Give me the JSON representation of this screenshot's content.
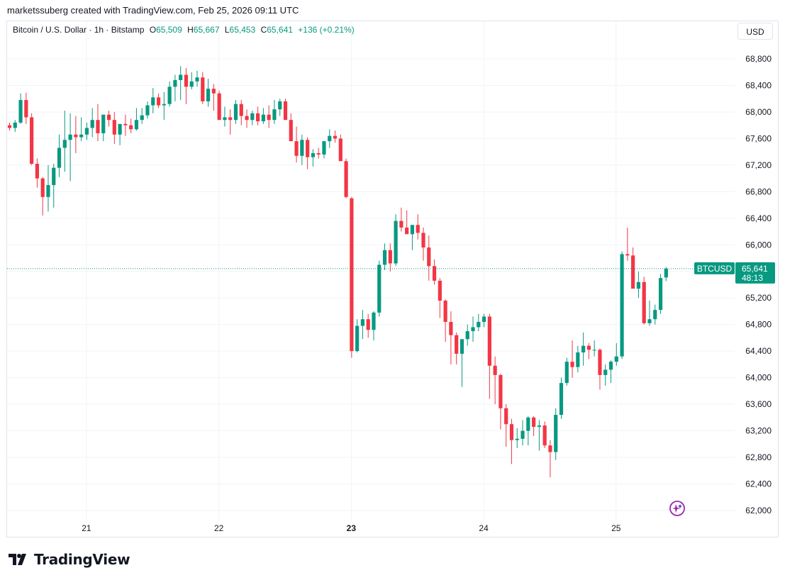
{
  "header": {
    "attribution": "marketssuberg created with TradingView.com, Feb 25, 2026 09:11 UTC"
  },
  "symbol": {
    "title": "Bitcoin / U.S. Dollar · 1h · Bitstamp",
    "open_label": "O",
    "open_value": "65,509",
    "high_label": "H",
    "high_value": "65,667",
    "low_label": "L",
    "low_value": "65,453",
    "close_label": "C",
    "close_value": "65,641",
    "change": "+136 (+0.21%)"
  },
  "toolbar": {
    "currency": "USD"
  },
  "price_label": {
    "ticker": "BTCUSD",
    "price": "65,641",
    "countdown": "48:13"
  },
  "footer": {
    "brand": "TradingView"
  },
  "colors": {
    "up": "#089981",
    "down": "#f23645",
    "grid": "#f0f3fa",
    "axis_text": "#131722",
    "last_price_line": "#089981"
  },
  "icons": {
    "assistant": "sparkle-icon",
    "logo": "tradingview-logo-icon"
  },
  "chart_data": {
    "type": "candlestick",
    "title": "Bitcoin / U.S. Dollar · 1h · Bitstamp",
    "y_ticks": [
      62000,
      62400,
      62800,
      63200,
      63600,
      64000,
      64400,
      64800,
      65200,
      65600,
      66000,
      66400,
      66800,
      67200,
      67600,
      68000,
      68400,
      68800
    ],
    "y_tick_labels": [
      "62,000",
      "62,400",
      "62,800",
      "63,200",
      "63,600",
      "64,000",
      "64,400",
      "64,800",
      "65,200",
      "65,600",
      "66,000",
      "66,400",
      "66,800",
      "67,200",
      "67,600",
      "68,000",
      "68,400",
      "68,800"
    ],
    "ylim": [
      61900,
      69600
    ],
    "x_ticks": [
      {
        "label": "21",
        "bold": false
      },
      {
        "label": "22",
        "bold": false
      },
      {
        "label": "23",
        "bold": true
      },
      {
        "label": "24",
        "bold": false
      },
      {
        "label": "25",
        "bold": false
      }
    ],
    "x_tick_index": [
      14,
      38,
      62,
      86,
      110
    ],
    "grid": true,
    "last_price": 65641,
    "candles": [
      [
        67800,
        67840,
        67720,
        67760
      ],
      [
        67760,
        67880,
        67700,
        67840
      ],
      [
        67840,
        68280,
        67820,
        68180
      ],
      [
        68180,
        68290,
        67820,
        67920
      ],
      [
        67920,
        67980,
        67200,
        67220
      ],
      [
        67220,
        67300,
        66860,
        67000
      ],
      [
        67000,
        67020,
        66440,
        66720
      ],
      [
        66720,
        67200,
        66500,
        66900
      ],
      [
        66900,
        67220,
        66560,
        67160
      ],
      [
        67160,
        67660,
        67020,
        67460
      ],
      [
        67460,
        68020,
        67100,
        67580
      ],
      [
        67580,
        67980,
        66960,
        67660
      ],
      [
        67660,
        67940,
        67380,
        67620
      ],
      [
        67620,
        67920,
        67560,
        67660
      ],
      [
        67660,
        67840,
        67580,
        67760
      ],
      [
        67760,
        68060,
        67620,
        67880
      ],
      [
        67880,
        68120,
        67560,
        67680
      ],
      [
        67680,
        67920,
        67560,
        67960
      ],
      [
        67960,
        68020,
        67780,
        67880
      ],
      [
        67880,
        68000,
        67520,
        67660
      ],
      [
        67660,
        67800,
        67500,
        67820
      ],
      [
        67820,
        67960,
        67640,
        67800
      ],
      [
        67800,
        67900,
        67680,
        67740
      ],
      [
        67740,
        68060,
        67720,
        67880
      ],
      [
        67880,
        68060,
        67820,
        67950
      ],
      [
        67950,
        68160,
        67900,
        68100
      ],
      [
        68100,
        68360,
        67980,
        68220
      ],
      [
        68220,
        68280,
        68060,
        68100
      ],
      [
        68100,
        68300,
        67880,
        68120
      ],
      [
        68120,
        68460,
        68080,
        68380
      ],
      [
        68380,
        68560,
        68160,
        68480
      ],
      [
        68480,
        68690,
        68180,
        68560
      ],
      [
        68560,
        68660,
        68120,
        68380
      ],
      [
        68380,
        68600,
        68340,
        68460
      ],
      [
        68460,
        68620,
        68380,
        68520
      ],
      [
        68520,
        68600,
        68120,
        68160
      ],
      [
        68160,
        68500,
        68080,
        68350
      ],
      [
        68350,
        68420,
        68020,
        68280
      ],
      [
        68280,
        68320,
        67900,
        67880
      ],
      [
        67880,
        68080,
        67780,
        67920
      ],
      [
        67920,
        68040,
        67660,
        67880
      ],
      [
        67880,
        68180,
        67820,
        68120
      ],
      [
        68120,
        68180,
        67800,
        67940
      ],
      [
        67940,
        68040,
        67760,
        67880
      ],
      [
        67880,
        68020,
        67800,
        67980
      ],
      [
        67980,
        68080,
        67800,
        67860
      ],
      [
        67860,
        68060,
        67820,
        67960
      ],
      [
        67960,
        68100,
        67760,
        67880
      ],
      [
        67880,
        68180,
        67820,
        68040
      ],
      [
        68040,
        68200,
        67940,
        68160
      ],
      [
        68160,
        68200,
        67900,
        67880
      ],
      [
        67880,
        67980,
        67620,
        67560
      ],
      [
        67560,
        67780,
        67240,
        67340
      ],
      [
        67340,
        67660,
        67200,
        67580
      ],
      [
        67580,
        67620,
        67140,
        67320
      ],
      [
        67320,
        67440,
        67180,
        67380
      ],
      [
        67380,
        67460,
        67300,
        67360
      ],
      [
        67360,
        67560,
        67300,
        67560
      ],
      [
        67560,
        67740,
        67460,
        67640
      ],
      [
        67640,
        67720,
        67540,
        67600
      ],
      [
        67600,
        67660,
        67320,
        67260
      ],
      [
        67260,
        67300,
        66700,
        66720
      ],
      [
        66700,
        66720,
        64300,
        64400
      ],
      [
        64400,
        64880,
        64380,
        64780
      ],
      [
        64780,
        65020,
        64580,
        64880
      ],
      [
        64880,
        64960,
        64600,
        64720
      ],
      [
        64720,
        65000,
        64560,
        64980
      ],
      [
        64980,
        65760,
        64920,
        65700
      ],
      [
        65700,
        66020,
        65620,
        65920
      ],
      [
        65920,
        66020,
        65600,
        65720
      ],
      [
        65720,
        66460,
        65680,
        66360
      ],
      [
        66360,
        66560,
        66200,
        66260
      ],
      [
        66260,
        66520,
        66180,
        66160
      ],
      [
        66160,
        66260,
        65920,
        66300
      ],
      [
        66300,
        66460,
        66080,
        66180
      ],
      [
        66180,
        66260,
        65760,
        65960
      ],
      [
        65960,
        66140,
        65460,
        65680
      ],
      [
        65680,
        65780,
        65400,
        65460
      ],
      [
        65460,
        65500,
        64900,
        65160
      ],
      [
        65160,
        65180,
        64540,
        64840
      ],
      [
        64840,
        65000,
        64200,
        64640
      ],
      [
        64640,
        64680,
        64200,
        64360
      ],
      [
        64360,
        64560,
        63860,
        64580
      ],
      [
        64580,
        64800,
        64480,
        64700
      ],
      [
        64700,
        64920,
        64540,
        64760
      ],
      [
        64760,
        64960,
        64700,
        64840
      ],
      [
        64840,
        64960,
        64760,
        64920
      ],
      [
        64920,
        64960,
        63680,
        64180
      ],
      [
        64180,
        64320,
        63600,
        64040
      ],
      [
        64040,
        64060,
        63220,
        63540
      ],
      [
        63540,
        63600,
        62960,
        63300
      ],
      [
        63300,
        63380,
        62700,
        63060
      ],
      [
        63060,
        63240,
        62940,
        63080
      ],
      [
        63080,
        63360,
        62980,
        63200
      ],
      [
        63200,
        63420,
        62980,
        63400
      ],
      [
        63400,
        63420,
        63120,
        63260
      ],
      [
        63260,
        63360,
        62900,
        63280
      ],
      [
        63280,
        63340,
        62940,
        62980
      ],
      [
        62980,
        63060,
        62500,
        62880
      ],
      [
        62880,
        63540,
        62760,
        63440
      ],
      [
        63440,
        64000,
        63380,
        63920
      ],
      [
        63920,
        64300,
        63880,
        64240
      ],
      [
        64240,
        64560,
        64000,
        64160
      ],
      [
        64160,
        64480,
        64080,
        64380
      ],
      [
        64380,
        64680,
        64180,
        64480
      ],
      [
        64480,
        64520,
        64280,
        64420
      ],
      [
        64420,
        64560,
        64320,
        64420
      ],
      [
        64420,
        64440,
        63820,
        64040
      ],
      [
        64040,
        64200,
        63880,
        64120
      ],
      [
        64120,
        64260,
        63920,
        64240
      ],
      [
        64240,
        64520,
        64180,
        64320
      ],
      [
        64320,
        65900,
        64280,
        65860
      ],
      [
        65860,
        66260,
        65760,
        65840
      ],
      [
        65840,
        65960,
        65380,
        65340
      ],
      [
        65340,
        65600,
        65200,
        65440
      ],
      [
        65440,
        65520,
        64800,
        64820
      ],
      [
        64820,
        65160,
        64780,
        64880
      ],
      [
        64880,
        65100,
        64800,
        65020
      ],
      [
        65020,
        65560,
        64960,
        65500
      ],
      [
        65509,
        65667,
        65453,
        65641
      ]
    ]
  }
}
